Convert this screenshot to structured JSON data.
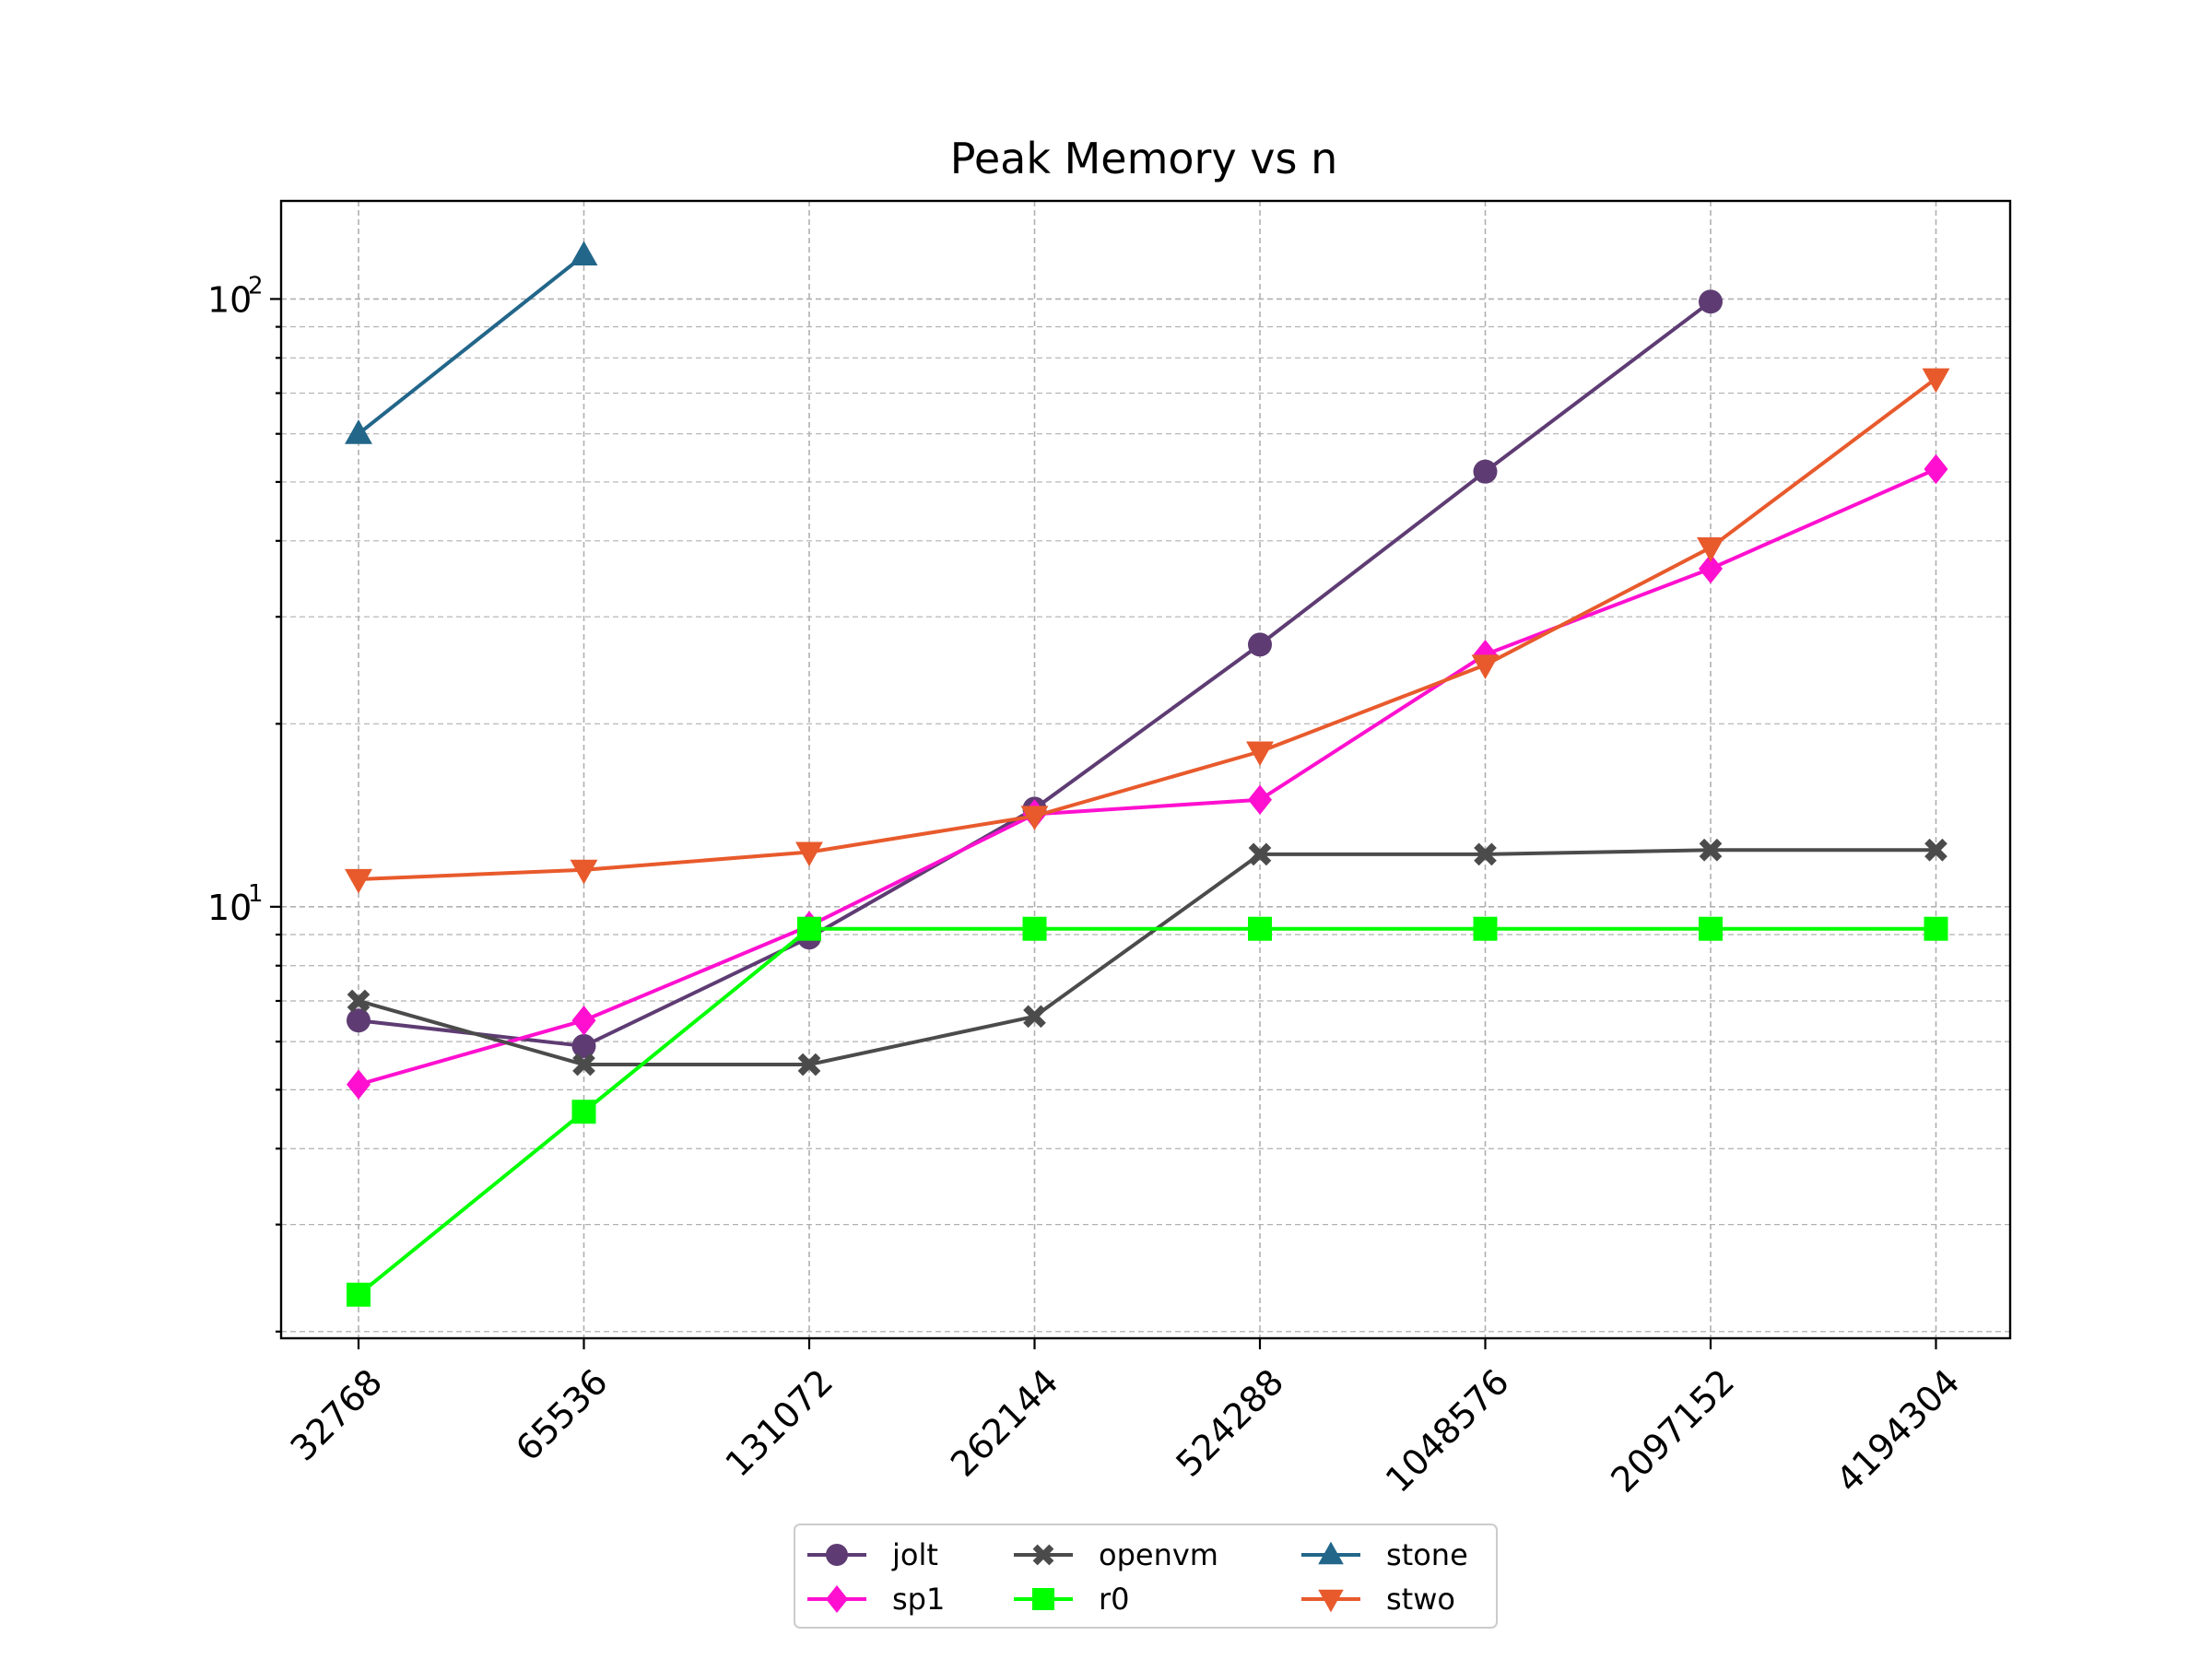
{
  "chart_data": {
    "type": "line",
    "title": "Peak Memory vs n",
    "xlabel": "",
    "ylabel": "",
    "x_scale": "categorical",
    "y_scale": "log",
    "categories": [
      "32768",
      "65536",
      "131072",
      "262144",
      "524288",
      "1048576",
      "2097152",
      "4194304"
    ],
    "ylim": [
      1.95,
      145
    ],
    "y_major_ticks": [
      {
        "value": 10,
        "base": "10",
        "exp": "1"
      },
      {
        "value": 100,
        "base": "10",
        "exp": "2"
      }
    ],
    "y_minor_ticks": [
      2,
      3,
      4,
      5,
      6,
      7,
      8,
      9,
      20,
      30,
      40,
      50,
      60,
      70,
      80,
      90
    ],
    "grid": true,
    "legend": {
      "placement": "bottom-center",
      "columns": 3
    },
    "series": [
      {
        "name": "jolt",
        "color": "#5e3c73",
        "marker": "circle",
        "values": [
          6.5,
          5.9,
          8.9,
          14.5,
          27.0,
          52.0,
          99.0,
          null
        ]
      },
      {
        "name": "sp1",
        "color": "#ff10d0",
        "marker": "diamond",
        "values": [
          5.1,
          6.5,
          9.3,
          14.2,
          15.0,
          26.0,
          36.0,
          52.5
        ]
      },
      {
        "name": "openvm",
        "color": "#4b4b4b",
        "marker": "x",
        "values": [
          7.0,
          5.5,
          5.5,
          6.6,
          12.2,
          12.2,
          12.4,
          12.4
        ]
      },
      {
        "name": "r0",
        "color": "#00ff00",
        "marker": "square",
        "values": [
          2.3,
          4.6,
          9.2,
          9.2,
          9.2,
          9.2,
          9.2,
          9.2
        ]
      },
      {
        "name": "stone",
        "color": "#22668a",
        "marker": "triangle-up",
        "values": [
          60.0,
          118.0,
          null,
          null,
          null,
          null,
          null,
          null
        ]
      },
      {
        "name": "stwo",
        "color": "#e85a2c",
        "marker": "triangle-down",
        "values": [
          11.1,
          11.5,
          12.3,
          14.1,
          18.0,
          25.0,
          39.0,
          74.0
        ]
      }
    ]
  }
}
